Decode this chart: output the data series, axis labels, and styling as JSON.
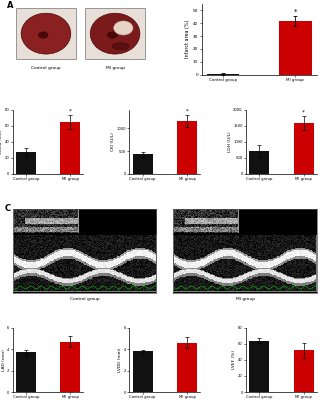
{
  "bg_color": "#ffffff",
  "panel_label_fontsize": 6,
  "tick_fontsize": 3.5,
  "label_fontsize": 4.0,
  "bar_width": 0.45,
  "panel_A_bar": {
    "categories": [
      "Control group",
      "MI group"
    ],
    "values": [
      0.5,
      42
    ],
    "errors": [
      0.5,
      4
    ],
    "colors": [
      "#111111",
      "#cc0000"
    ],
    "ylabel": "Infarct area (%)",
    "ylim": [
      0,
      55
    ],
    "yticks": [
      0,
      10,
      20,
      30,
      40,
      50
    ]
  },
  "panel_B_ckmb": {
    "categories": [
      "Control group",
      "MI group"
    ],
    "values": [
      27,
      65
    ],
    "errors": [
      5,
      9
    ],
    "colors": [
      "#111111",
      "#cc0000"
    ],
    "ylabel": "CKMB (U/L)",
    "ylim": [
      0,
      80
    ],
    "yticks": [
      0,
      20,
      40,
      60,
      80
    ]
  },
  "panel_B_cki": {
    "categories": [
      "Control group",
      "MI group"
    ],
    "values": [
      430,
      1150
    ],
    "errors": [
      60,
      130
    ],
    "colors": [
      "#111111",
      "#cc0000"
    ],
    "ylabel": "CKI (U/L)",
    "ylim": [
      0,
      1400
    ],
    "yticks": [
      0,
      500,
      1000
    ]
  },
  "panel_B_ldh": {
    "categories": [
      "Control group",
      "MI group"
    ],
    "values": [
      720,
      1580
    ],
    "errors": [
      180,
      220
    ],
    "colors": [
      "#111111",
      "#cc0000"
    ],
    "ylabel": "LDH (U/L)",
    "ylim": [
      0,
      2000
    ],
    "yticks": [
      0,
      500,
      1000,
      1500,
      2000
    ]
  },
  "panel_D_lad": {
    "categories": [
      "Control group",
      "MI group"
    ],
    "values": [
      3.7,
      4.7
    ],
    "errors": [
      0.25,
      0.5
    ],
    "colors": [
      "#111111",
      "#cc0000"
    ],
    "ylabel": "LAD (mm)",
    "ylim": [
      0,
      6
    ],
    "yticks": [
      0,
      2,
      4,
      6
    ]
  },
  "panel_D_lvdd": {
    "categories": [
      "Control group",
      "MI group"
    ],
    "values": [
      3.8,
      4.6
    ],
    "errors": [
      0.15,
      0.5
    ],
    "colors": [
      "#111111",
      "#cc0000"
    ],
    "ylabel": "LVDD (mm)",
    "ylim": [
      0,
      6
    ],
    "yticks": [
      0,
      2,
      4,
      6
    ]
  },
  "panel_D_lvef": {
    "categories": [
      "Control group",
      "MI group"
    ],
    "values": [
      64,
      52
    ],
    "errors": [
      3,
      9
    ],
    "colors": [
      "#111111",
      "#cc0000"
    ],
    "ylabel": "LVEF (%)",
    "ylim": [
      0,
      80
    ],
    "yticks": [
      0,
      20,
      40,
      60,
      80
    ]
  },
  "img_A_control_bg": "#c8b8b0",
  "img_A_mi_bg": "#c8b8b0",
  "tissue_control_color": "#8B2020",
  "tissue_mi_color": "#7a1a1a",
  "tissue_mi_necrosis": "#e8d0c0",
  "us_bg": "#111111",
  "ecg_color": "#00ff00",
  "panel_C_labels": [
    "Control group",
    "MI group"
  ]
}
